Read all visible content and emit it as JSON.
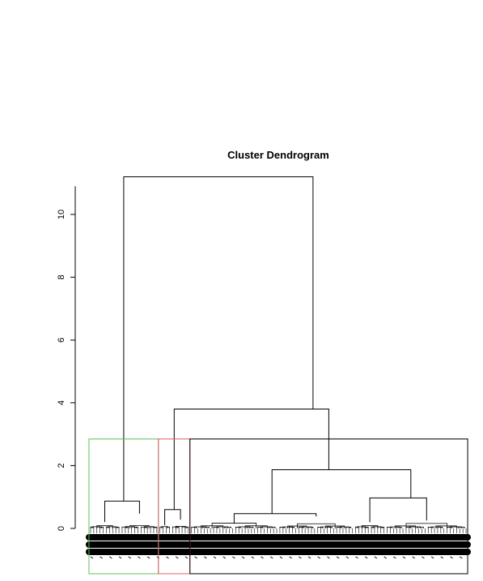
{
  "chart_data": {
    "type": "dendrogram",
    "title": "Cluster Dendrogram",
    "xlabel": "",
    "ylabel": "",
    "ylim": [
      0,
      11.5
    ],
    "y_ticks": [
      0,
      2,
      4,
      6,
      8,
      10
    ],
    "y_tick_labels": [
      "0",
      "2",
      "4",
      "6",
      "8",
      "10"
    ],
    "leaf_count": 120,
    "merges": [
      {
        "height": 11.2,
        "left_span": [
          0,
          22
        ],
        "right_span": [
          22,
          120
        ],
        "left_height": 0.87,
        "right_height": 3.8
      },
      {
        "height": 3.8,
        "left_span": [
          22,
          32
        ],
        "right_span": [
          32,
          120
        ],
        "left_height": 0.6,
        "right_height": 1.87
      },
      {
        "height": 1.87,
        "left_span": [
          32,
          84
        ],
        "right_span": [
          84,
          120
        ],
        "left_height": 0.47,
        "right_height": 0.97
      },
      {
        "height": 0.97,
        "left_span": [
          84,
          94
        ],
        "right_span": [
          94,
          120
        ],
        "left_height": 0.2,
        "right_height": 0.25
      },
      {
        "height": 0.87,
        "left_span": [
          0,
          10
        ],
        "right_span": [
          10,
          22
        ],
        "left_height": 0.2,
        "right_height": 0.47
      },
      {
        "height": 0.6,
        "left_span": [
          22,
          26
        ],
        "right_span": [
          26,
          32
        ],
        "left_height": 0.1,
        "right_height": 0.28
      },
      {
        "height": 0.47,
        "left_span": [
          32,
          60
        ],
        "right_span": [
          60,
          84
        ],
        "left_height": 0.15,
        "right_height": 0.38
      }
    ],
    "cluster_boxes": [
      {
        "color": "#5cc45c",
        "leaf_span": [
          0,
          22
        ],
        "height": 2.85
      },
      {
        "color": "#e06070",
        "leaf_span": [
          22,
          32
        ],
        "height": 2.85
      },
      {
        "color": "#000000",
        "leaf_span": [
          32,
          120
        ],
        "height": 2.85
      }
    ]
  }
}
